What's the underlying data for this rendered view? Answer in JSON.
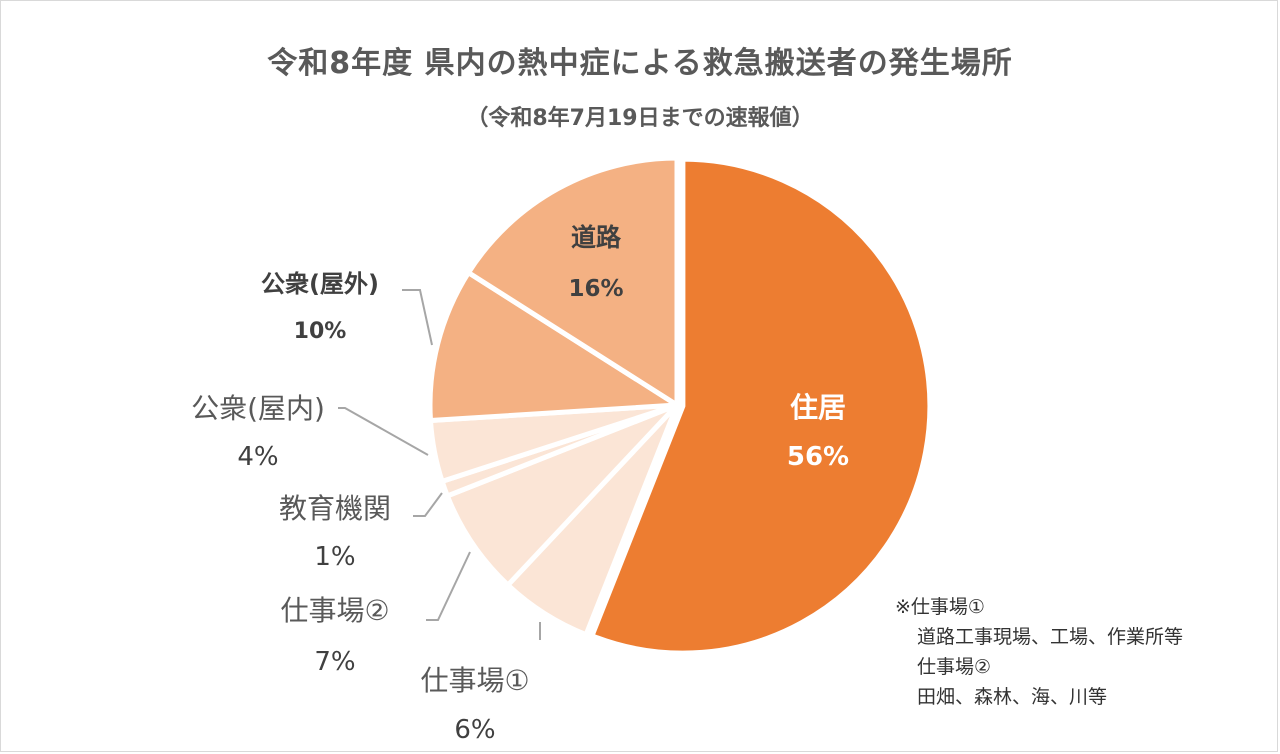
{
  "chart_data": {
    "type": "pie",
    "title": "令和8年度 県内の熱中症による救急搬送者の発生場所",
    "subtitle": "（令和8年7月19日までの速報値）",
    "slices": [
      {
        "name": "住居",
        "value": 56,
        "label": "56%",
        "color": "#ED7D31"
      },
      {
        "name": "仕事場①",
        "value": 6,
        "label": "6%",
        "color": "#FBE5D6"
      },
      {
        "name": "仕事場②",
        "value": 7,
        "label": "7%",
        "color": "#FBE5D6"
      },
      {
        "name": "教育機関",
        "value": 1,
        "label": "1%",
        "color": "#FBE5D6"
      },
      {
        "name": "公衆(屋内)",
        "value": 4,
        "label": "4%",
        "color": "#FBE5D6"
      },
      {
        "name": "公衆(屋外)",
        "value": 10,
        "label": "10%",
        "color": "#F4B183"
      },
      {
        "name": "道路",
        "value": 16,
        "label": "16%",
        "color": "#F4B183"
      }
    ]
  },
  "note": {
    "line1": "※仕事場①",
    "line2": "道路工事現場、工場、作業所等",
    "line3": "仕事場②",
    "line4": "田畑、森林、海、川等"
  }
}
